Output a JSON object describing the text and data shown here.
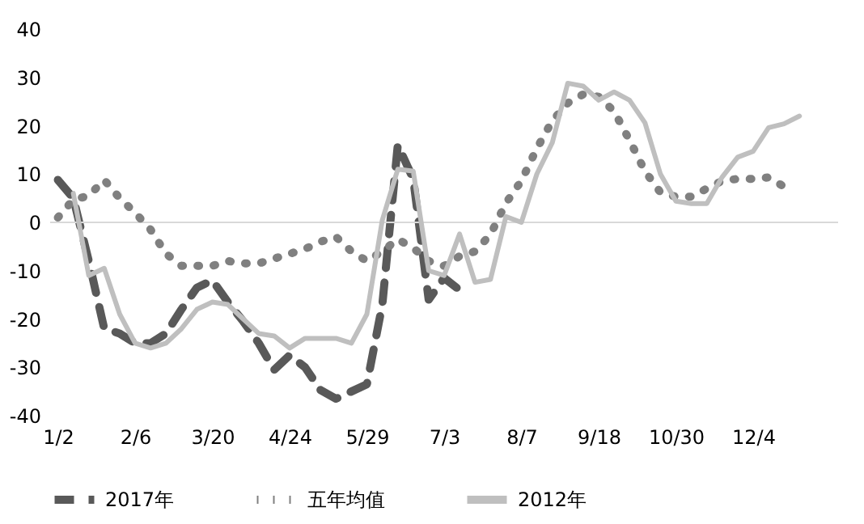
{
  "chart_data": {
    "type": "line",
    "categories": [
      "1/2",
      null,
      null,
      null,
      null,
      "2/6",
      null,
      null,
      null,
      null,
      "3/20",
      null,
      null,
      null,
      null,
      "4/24",
      null,
      null,
      null,
      null,
      "5/29",
      null,
      null,
      null,
      null,
      "7/3",
      null,
      null,
      null,
      null,
      "8/7",
      null,
      null,
      null,
      null,
      "9/18",
      null,
      null,
      null,
      null,
      "10/30",
      null,
      null,
      null,
      null,
      "12/4",
      null,
      null,
      null,
      null,
      null
    ],
    "series": [
      {
        "name": "2017年",
        "color": "#595959",
        "line_style": "dashed",
        "values": [
          8.8,
          5,
          -8,
          -22,
          -23,
          -25,
          -25,
          -23,
          -18,
          -13.5,
          -12,
          -16.5,
          -20.5,
          -25,
          -30.5,
          -27.5,
          -30,
          -34.7,
          -36.5,
          -35,
          -33.5,
          -17,
          16,
          9,
          -16,
          -11.5,
          -14,
          null,
          null,
          null,
          null,
          null,
          null,
          null,
          null,
          null,
          null,
          null,
          null,
          null,
          null,
          null,
          null,
          null,
          null,
          null,
          null,
          null,
          null,
          null,
          null
        ]
      },
      {
        "name": "五年均值",
        "color": "#808080",
        "line_style": "dotted",
        "values": [
          1,
          4.7,
          5.5,
          8.8,
          5,
          2,
          -1.5,
          -6.5,
          -9,
          -9,
          -9,
          -8,
          -8.5,
          -8.5,
          -7.5,
          -6.5,
          -5.5,
          -4,
          -3,
          -6,
          -8,
          -6,
          -3.5,
          -5.3,
          -8,
          -9,
          -7,
          -6,
          -2.5,
          4,
          8.6,
          15.3,
          21,
          24.7,
          26.5,
          26,
          23,
          17,
          10.6,
          6.2,
          5.3,
          5.3,
          7,
          8.6,
          9,
          9,
          9.3,
          7.4,
          null,
          null,
          null
        ]
      },
      {
        "name": "2012年",
        "color": "#bfbfbf",
        "line_style": "solid",
        "values": [
          null,
          6,
          -11,
          -9.5,
          -19,
          -25,
          -26,
          -25,
          -22,
          -18,
          -16.5,
          -17,
          -20,
          -23,
          -23.5,
          -26,
          -24,
          -24,
          -24,
          -25,
          -19,
          0.5,
          11,
          10.6,
          -10,
          -11,
          -2.4,
          -12.4,
          -11.8,
          1.2,
          0,
          10,
          16.5,
          28.8,
          28.2,
          25.3,
          27,
          25.3,
          20.6,
          10,
          4.4,
          3.9,
          3.9,
          9.4,
          13.5,
          14.7,
          19.6,
          20.4,
          22,
          null,
          null
        ]
      }
    ],
    "ylim": [
      -40,
      40
    ],
    "yticks": [
      -40,
      -30,
      -20,
      -10,
      0,
      10,
      20,
      30,
      40
    ],
    "ref_lines": [
      {
        "axis": "y",
        "value": 0,
        "color": "#d9d9d9"
      }
    ],
    "grid": false,
    "legend": "bottom"
  }
}
